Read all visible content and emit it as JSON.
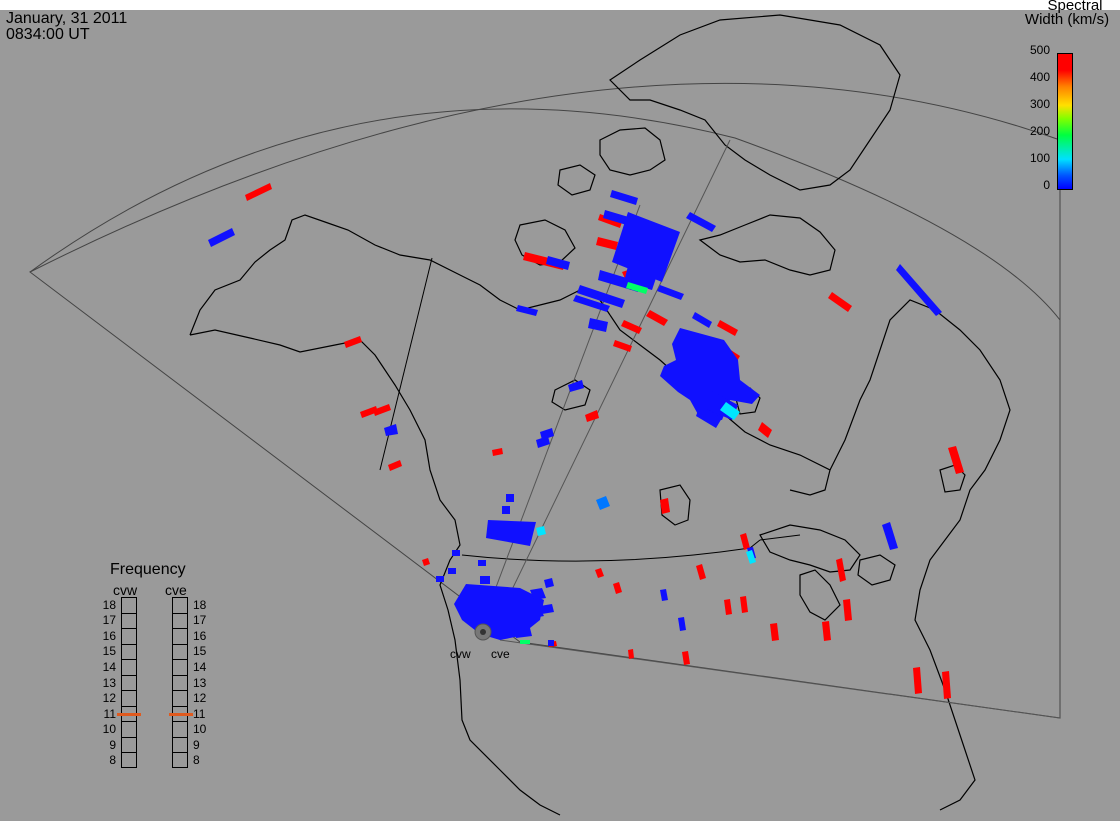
{
  "header": {
    "date": "January, 31 2011",
    "time": "0834:00 UT"
  },
  "color_scale": {
    "title_line1": "Spectral",
    "title_line2": "Width (km/s)",
    "ticks": [
      "500",
      "400",
      "300",
      "200",
      "100",
      "0"
    ],
    "range": [
      0,
      500
    ]
  },
  "frequency_panel": {
    "title": "Frequency",
    "radars": [
      "cvw",
      "cve"
    ],
    "levels": [
      "18",
      "17",
      "16",
      "15",
      "14",
      "13",
      "12",
      "11",
      "10",
      "9",
      "8"
    ],
    "cvw_value": 11,
    "cve_value": 11,
    "marker_color": "#e05a1e"
  },
  "sites": {
    "cvw": "cvw",
    "cve": "cve"
  },
  "colors": {
    "background": "#9a9a9a",
    "coastline": "#000000",
    "low_width": "#0000ff",
    "high_width": "#ff0000",
    "mid_width": "#00e5ff"
  }
}
